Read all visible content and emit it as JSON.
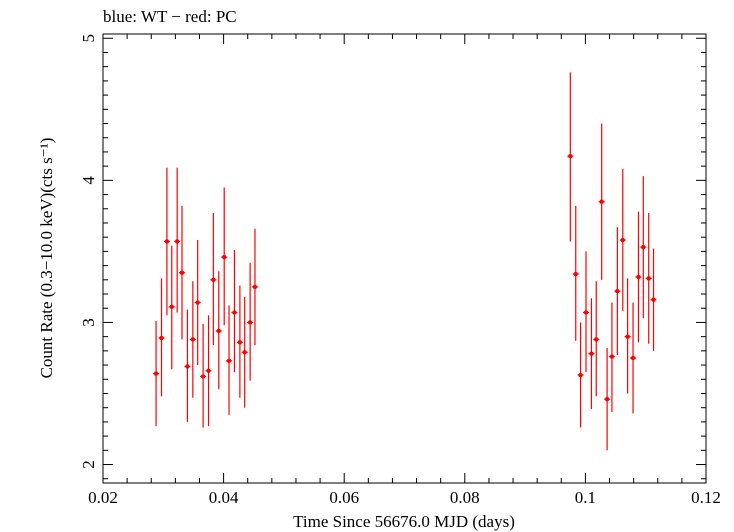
{
  "chart_data": {
    "type": "scatter",
    "title": "blue: WT − red: PC",
    "xlabel": "Time Since 56676.0 MJD (days)",
    "ylabel": "Count Rate (0.3−10.0 keV)(cts s⁻¹)",
    "xlim": [
      0.02,
      0.12
    ],
    "ylim": [
      1.87,
      5.03
    ],
    "xticks": [
      {
        "value": 0.02,
        "label": "0.02"
      },
      {
        "value": 0.04,
        "label": "0.04"
      },
      {
        "value": 0.06,
        "label": "0.06"
      },
      {
        "value": 0.08,
        "label": "0.08"
      },
      {
        "value": 0.1,
        "label": "0.1"
      },
      {
        "value": 0.12,
        "label": "0.12"
      }
    ],
    "yticks": [
      {
        "value": 2,
        "label": "2"
      },
      {
        "value": 3,
        "label": "3"
      },
      {
        "value": 4,
        "label": "4"
      },
      {
        "value": 5,
        "label": "5"
      }
    ],
    "grid": false,
    "colors": {
      "WT": "#0000ff",
      "PC": "#ff0000",
      "axes": "#000000"
    },
    "series": [
      {
        "name": "PC",
        "color": "#ff0000",
        "points": [
          {
            "x": 0.0288,
            "y": 2.64,
            "ylo": 2.27,
            "yhi": 3.01
          },
          {
            "x": 0.0297,
            "y": 2.89,
            "ylo": 2.48,
            "yhi": 3.31
          },
          {
            "x": 0.0306,
            "y": 3.57,
            "ylo": 3.05,
            "yhi": 4.09
          },
          {
            "x": 0.0314,
            "y": 3.11,
            "ylo": 2.67,
            "yhi": 3.54
          },
          {
            "x": 0.0323,
            "y": 3.57,
            "ylo": 3.07,
            "yhi": 4.09
          },
          {
            "x": 0.0331,
            "y": 3.35,
            "ylo": 2.88,
            "yhi": 3.82
          },
          {
            "x": 0.034,
            "y": 2.69,
            "ylo": 2.3,
            "yhi": 3.09
          },
          {
            "x": 0.0349,
            "y": 2.88,
            "ylo": 2.47,
            "yhi": 3.29
          },
          {
            "x": 0.0357,
            "y": 3.14,
            "ylo": 2.7,
            "yhi": 3.58
          },
          {
            "x": 0.0366,
            "y": 2.62,
            "ylo": 2.26,
            "yhi": 2.99
          },
          {
            "x": 0.0375,
            "y": 2.66,
            "ylo": 2.27,
            "yhi": 3.05
          },
          {
            "x": 0.0383,
            "y": 3.3,
            "ylo": 2.84,
            "yhi": 3.77
          },
          {
            "x": 0.0392,
            "y": 2.94,
            "ylo": 2.53,
            "yhi": 3.36
          },
          {
            "x": 0.0401,
            "y": 3.46,
            "ylo": 2.98,
            "yhi": 3.95
          },
          {
            "x": 0.0409,
            "y": 2.73,
            "ylo": 2.35,
            "yhi": 3.12
          },
          {
            "x": 0.0418,
            "y": 3.07,
            "ylo": 2.65,
            "yhi": 3.51
          },
          {
            "x": 0.0427,
            "y": 2.86,
            "ylo": 2.47,
            "yhi": 3.26
          },
          {
            "x": 0.0435,
            "y": 2.79,
            "ylo": 2.4,
            "yhi": 3.18
          },
          {
            "x": 0.0444,
            "y": 3.0,
            "ylo": 2.59,
            "yhi": 3.42
          },
          {
            "x": 0.0452,
            "y": 3.25,
            "ylo": 2.84,
            "yhi": 3.66
          },
          {
            "x": 0.0975,
            "y": 4.17,
            "ylo": 3.57,
            "yhi": 4.76
          },
          {
            "x": 0.0984,
            "y": 3.34,
            "ylo": 2.87,
            "yhi": 3.82
          },
          {
            "x": 0.0992,
            "y": 2.63,
            "ylo": 2.26,
            "yhi": 3.0
          },
          {
            "x": 0.1001,
            "y": 3.07,
            "ylo": 2.65,
            "yhi": 3.5
          },
          {
            "x": 0.101,
            "y": 2.78,
            "ylo": 2.39,
            "yhi": 3.17
          },
          {
            "x": 0.1018,
            "y": 2.88,
            "ylo": 2.48,
            "yhi": 3.29
          },
          {
            "x": 0.1027,
            "y": 3.85,
            "ylo": 3.3,
            "yhi": 4.4
          },
          {
            "x": 0.1036,
            "y": 2.46,
            "ylo": 2.1,
            "yhi": 2.82
          },
          {
            "x": 0.1044,
            "y": 2.76,
            "ylo": 2.37,
            "yhi": 3.14
          },
          {
            "x": 0.1053,
            "y": 3.22,
            "ylo": 2.77,
            "yhi": 3.67
          },
          {
            "x": 0.1062,
            "y": 3.58,
            "ylo": 3.08,
            "yhi": 4.08
          },
          {
            "x": 0.107,
            "y": 2.9,
            "ylo": 2.5,
            "yhi": 3.31
          },
          {
            "x": 0.1079,
            "y": 2.75,
            "ylo": 2.36,
            "yhi": 3.14
          },
          {
            "x": 0.1088,
            "y": 3.32,
            "ylo": 2.86,
            "yhi": 3.78
          },
          {
            "x": 0.1096,
            "y": 3.53,
            "ylo": 3.03,
            "yhi": 4.03
          },
          {
            "x": 0.1105,
            "y": 3.31,
            "ylo": 2.85,
            "yhi": 3.77
          },
          {
            "x": 0.1113,
            "y": 3.16,
            "ylo": 2.8,
            "yhi": 3.52
          }
        ]
      }
    ]
  }
}
